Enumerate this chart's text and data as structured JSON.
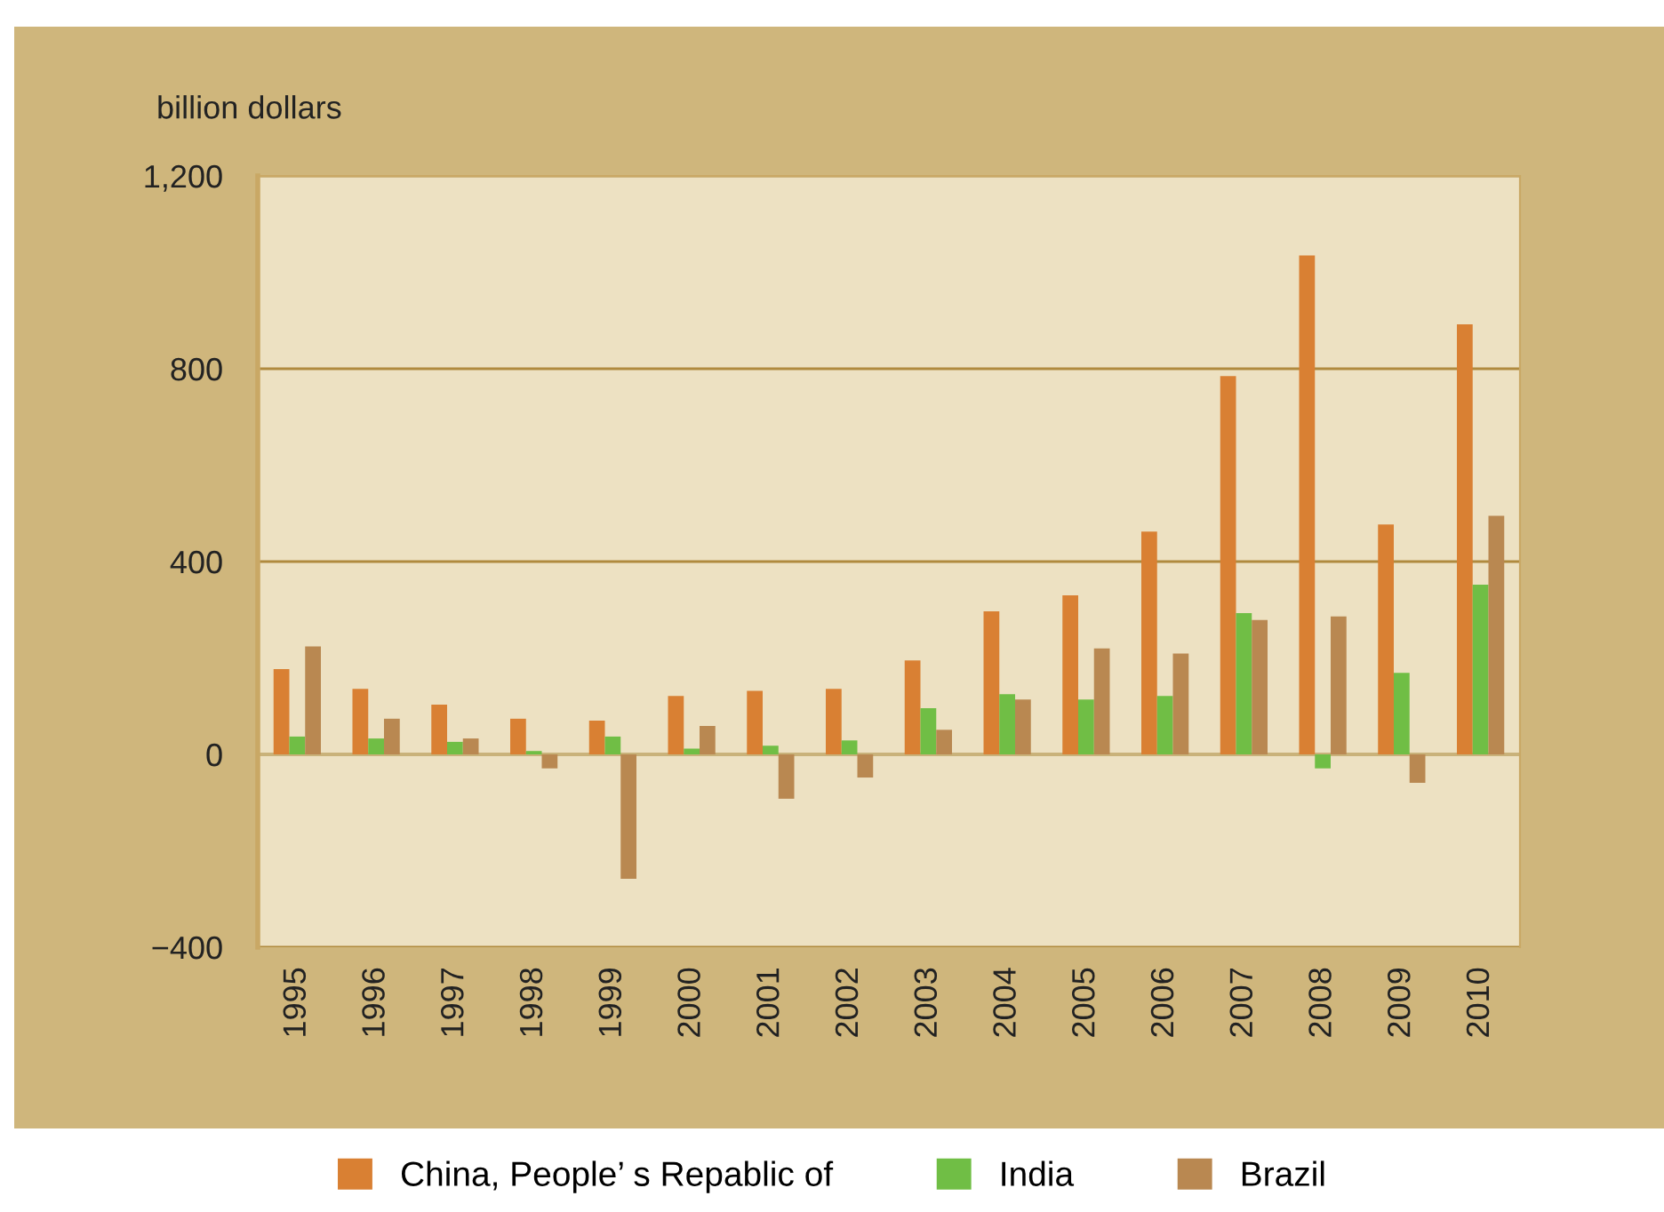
{
  "chart_data": {
    "type": "bar",
    "ylabel": "billion dollars",
    "categories": [
      "1995",
      "1996",
      "1997",
      "1998",
      "1999",
      "2000",
      "2001",
      "2002",
      "2003",
      "2004",
      "2005",
      "2006",
      "2007",
      "2008",
      "2009",
      "2010"
    ],
    "series": [
      {
        "name": "China, People’ s Repablic of",
        "color": "#d98033",
        "values": [
          177,
          136,
          103,
          74,
          70,
          121,
          132,
          136,
          195,
          297,
          330,
          462,
          785,
          1035,
          477,
          892
        ]
      },
      {
        "name": "India",
        "color": "#70be45",
        "values": [
          37,
          33,
          26,
          7,
          37,
          12,
          18,
          29,
          96,
          125,
          114,
          121,
          293,
          -29,
          169,
          352
        ]
      },
      {
        "name": "Brazil",
        "color": "#b98851",
        "values": [
          224,
          74,
          33,
          -29,
          -258,
          59,
          -92,
          -48,
          51,
          114,
          220,
          209,
          279,
          286,
          -59,
          495
        ]
      }
    ],
    "ylim": [
      -400,
      1200
    ],
    "yticks": [
      {
        "value": -400,
        "label": "−400"
      },
      0,
      400,
      800,
      {
        "value": 1200,
        "label": "1,200"
      }
    ],
    "ref_lines": [
      {
        "axis": "y",
        "value": 0,
        "color": "#c9b27a"
      }
    ],
    "grid": "y",
    "legend": "bottom"
  }
}
